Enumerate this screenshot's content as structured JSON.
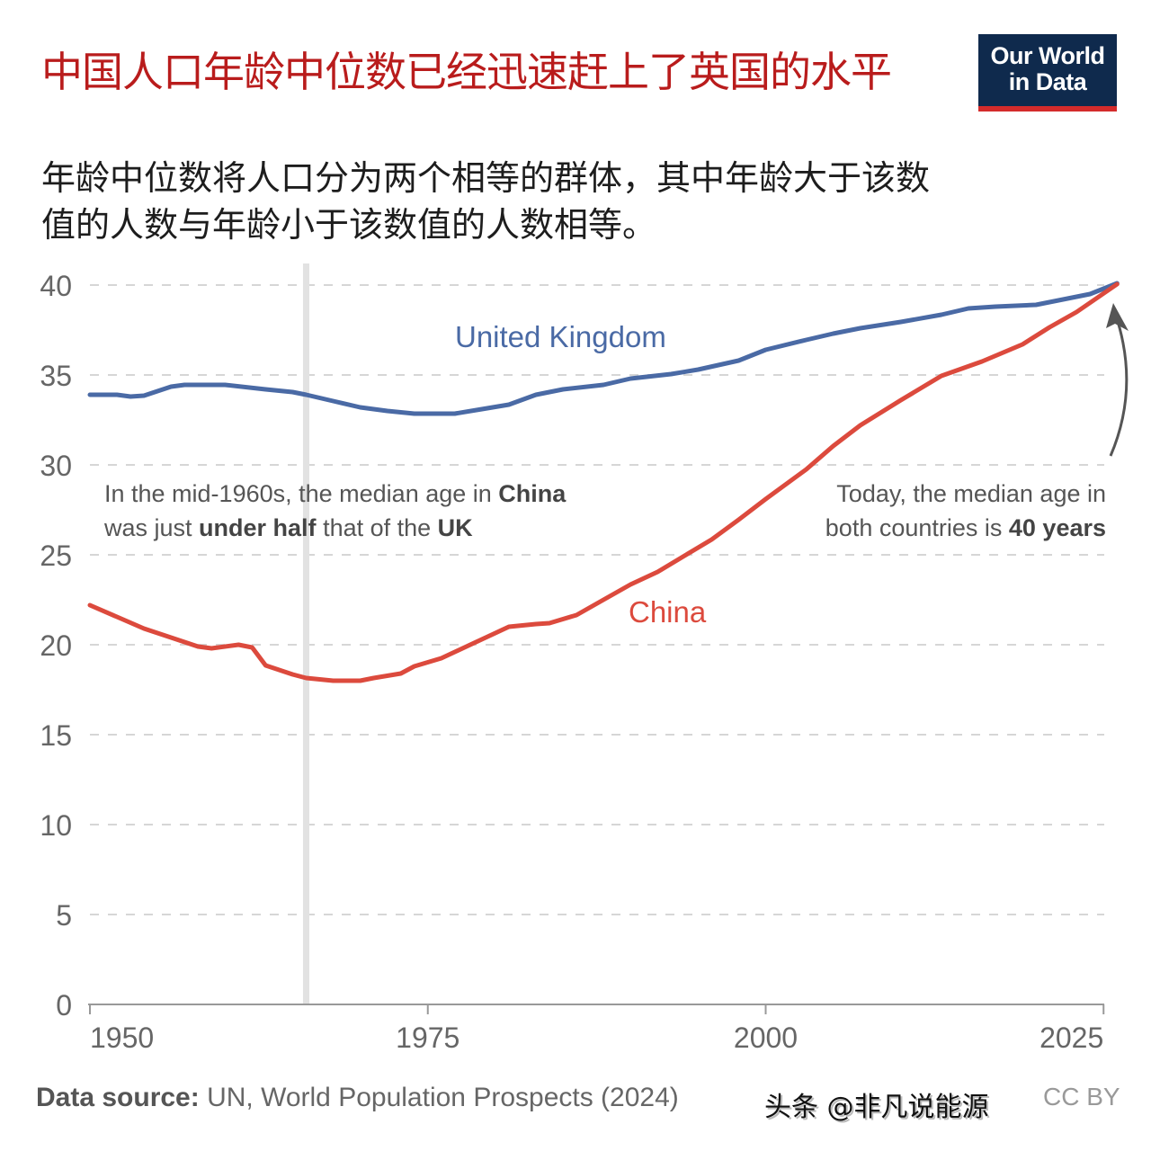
{
  "header": {
    "title": "中国人口年龄中位数已经迅速赶上了英国的水平",
    "subtitle": "年龄中位数将人口分为两个相等的群体，其中年龄大于该数值的人数与年龄小于该数值的人数相等。",
    "logo_line1": "Our World",
    "logo_line2": "in Data"
  },
  "annotations": {
    "left": {
      "t1": "In the mid-1960s, the median age in ",
      "b1": "China",
      "t2": "was just ",
      "b2": "under half",
      "t3": " that of the ",
      "b3": "UK"
    },
    "right": {
      "t1": "Today, the median age in",
      "t2": "both countries is ",
      "b1": "40 years"
    }
  },
  "footer": {
    "source_label": "Data source:",
    "source_text": " UN, World Population Prospects (2024)",
    "license": "CC BY",
    "watermark": "头条 @非凡说能源"
  },
  "colors": {
    "uk": "#4a6aa5",
    "china": "#dc4a3d",
    "title": "#b91c1c"
  },
  "chart_data": {
    "type": "line",
    "title": "中国人口年龄中位数已经迅速赶上了英国的水平",
    "xlim": [
      1950,
      2026
    ],
    "ylim": [
      0,
      40
    ],
    "x_ticks": [
      1950,
      1975,
      2000,
      2025
    ],
    "y_ticks": [
      0,
      5,
      10,
      15,
      20,
      25,
      30,
      35,
      40
    ],
    "grid": "horizontal dashed",
    "highlight_x": 1966,
    "series": [
      {
        "name": "United Kingdom",
        "color": "#4a6aa5",
        "x": [
          1950,
          1952,
          1953,
          1954,
          1956,
          1957,
          1960,
          1963,
          1965,
          1966,
          1968,
          1970,
          1972,
          1974,
          1977,
          1979,
          1981,
          1983,
          1985,
          1988,
          1990,
          1993,
          1995,
          1998,
          2000,
          2003,
          2005,
          2007,
          2010,
          2013,
          2015,
          2017,
          2020,
          2022,
          2024,
          2025,
          2026
        ],
        "y": [
          33.9,
          33.9,
          33.8,
          33.85,
          34.35,
          34.45,
          34.45,
          34.2,
          34.05,
          33.9,
          33.55,
          33.2,
          33.0,
          32.85,
          32.85,
          33.1,
          33.35,
          33.9,
          34.2,
          34.45,
          34.8,
          35.05,
          35.3,
          35.8,
          36.4,
          36.95,
          37.3,
          37.6,
          37.95,
          38.35,
          38.7,
          38.8,
          38.9,
          39.2,
          39.5,
          39.8,
          40.1
        ]
      },
      {
        "name": "China",
        "color": "#dc4a3d",
        "x": [
          1950,
          1952,
          1954,
          1956,
          1958,
          1959,
          1961,
          1962,
          1963,
          1965,
          1966,
          1968,
          1970,
          1971,
          1973,
          1974,
          1976,
          1978,
          1980,
          1981,
          1983,
          1984,
          1986,
          1988,
          1990,
          1992,
          1994,
          1996,
          1998,
          2000,
          2003,
          2005,
          2007,
          2010,
          2013,
          2016,
          2019,
          2021,
          2023,
          2026
        ],
        "y": [
          22.2,
          21.55,
          20.9,
          20.4,
          19.9,
          19.8,
          20.0,
          19.85,
          18.85,
          18.35,
          18.15,
          18.0,
          18.0,
          18.15,
          18.4,
          18.8,
          19.25,
          19.95,
          20.65,
          21.0,
          21.15,
          21.2,
          21.65,
          22.5,
          23.35,
          24.05,
          24.95,
          25.85,
          26.95,
          28.1,
          29.75,
          31.05,
          32.2,
          33.6,
          34.95,
          35.75,
          36.7,
          37.65,
          38.5,
          40.05
        ]
      }
    ]
  }
}
